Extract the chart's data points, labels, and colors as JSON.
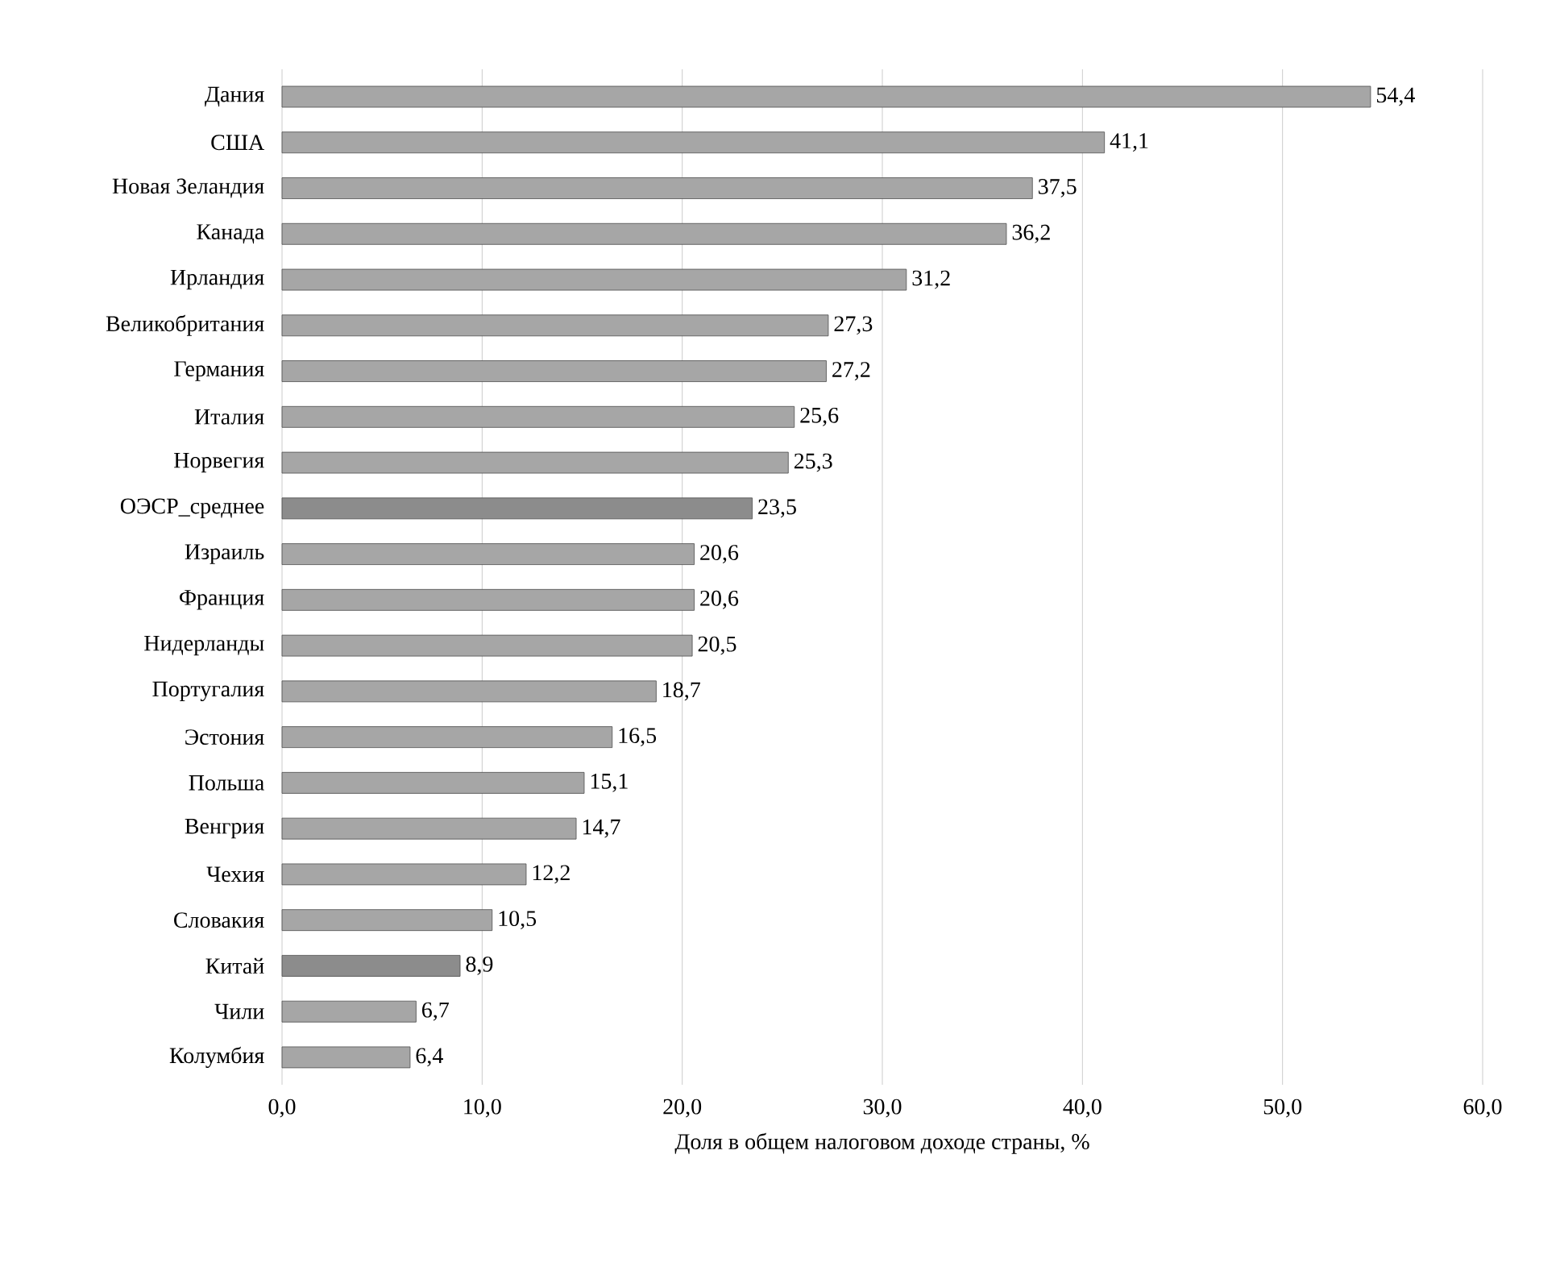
{
  "chart_data": {
    "type": "bar",
    "orientation": "horizontal",
    "xlabel": "Доля в общем налоговом доходе страны, %",
    "categories": [
      "Дания",
      "США",
      "Новая Зеландия",
      "Канада",
      "Ирландия",
      "Великобритания",
      "Германия",
      "Италия",
      "Норвегия",
      "ОЭСР_среднее",
      "Израиль",
      "Франция",
      "Нидерланды",
      "Португалия",
      "Эстония",
      "Польша",
      "Венгрия",
      "Чехия",
      "Словакия",
      "Китай",
      "Чили",
      "Колумбия"
    ],
    "values": [
      54.4,
      41.1,
      37.5,
      36.2,
      31.2,
      27.3,
      27.2,
      25.6,
      25.3,
      23.5,
      20.6,
      20.6,
      20.5,
      18.7,
      16.5,
      15.1,
      14.7,
      12.2,
      10.5,
      8.9,
      6.7,
      6.4
    ],
    "value_labels": [
      "54,4",
      "41,1",
      "37,5",
      "36,2",
      "31,2",
      "27,3",
      "27,2",
      "25,6",
      "25,3",
      "23,5",
      "20,6",
      "20,6",
      "20,5",
      "18,7",
      "16,5",
      "15,1",
      "14,7",
      "12,2",
      "10,5",
      "8,9",
      "6,7",
      "6,4"
    ],
    "colors": [
      "#a6a6a6",
      "#a6a6a6",
      "#a6a6a6",
      "#a6a6a6",
      "#a6a6a6",
      "#a6a6a6",
      "#a6a6a6",
      "#a6a6a6",
      "#a6a6a6",
      "#8c8c8c",
      "#a6a6a6",
      "#a6a6a6",
      "#a6a6a6",
      "#a6a6a6",
      "#a6a6a6",
      "#a6a6a6",
      "#a6a6a6",
      "#a6a6a6",
      "#a6a6a6",
      "#8c8c8c",
      "#a6a6a6",
      "#a6a6a6"
    ],
    "xlim": [
      0,
      60
    ],
    "xticks": [
      {
        "value": 0,
        "label": "0,0"
      },
      {
        "value": 10,
        "label": "10,0"
      },
      {
        "value": 20,
        "label": "20,0"
      },
      {
        "value": 30,
        "label": "30,0"
      },
      {
        "value": 40,
        "label": "40,0"
      },
      {
        "value": 50,
        "label": "50,0"
      },
      {
        "value": 60,
        "label": "60,0"
      }
    ],
    "grid": "x"
  }
}
